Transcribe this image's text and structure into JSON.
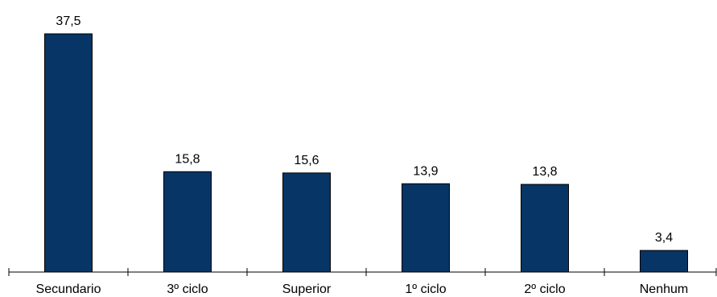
{
  "chart_data": {
    "type": "bar",
    "categories": [
      "Secundario",
      "3º ciclo",
      "Superior",
      "1º ciclo",
      "2º ciclo",
      "Nenhum"
    ],
    "values": [
      37.5,
      15.8,
      15.6,
      13.9,
      13.8,
      3.4
    ],
    "value_labels": [
      "37,5",
      "15,8",
      "15,6",
      "13,9",
      "13,8",
      "3,4"
    ],
    "title": "",
    "xlabel": "",
    "ylabel": "",
    "ylim": [
      0,
      37.5
    ],
    "grid": false,
    "legend": "none",
    "colors": {
      "bar_fill": "#073565",
      "bar_stroke": "#000000"
    }
  }
}
